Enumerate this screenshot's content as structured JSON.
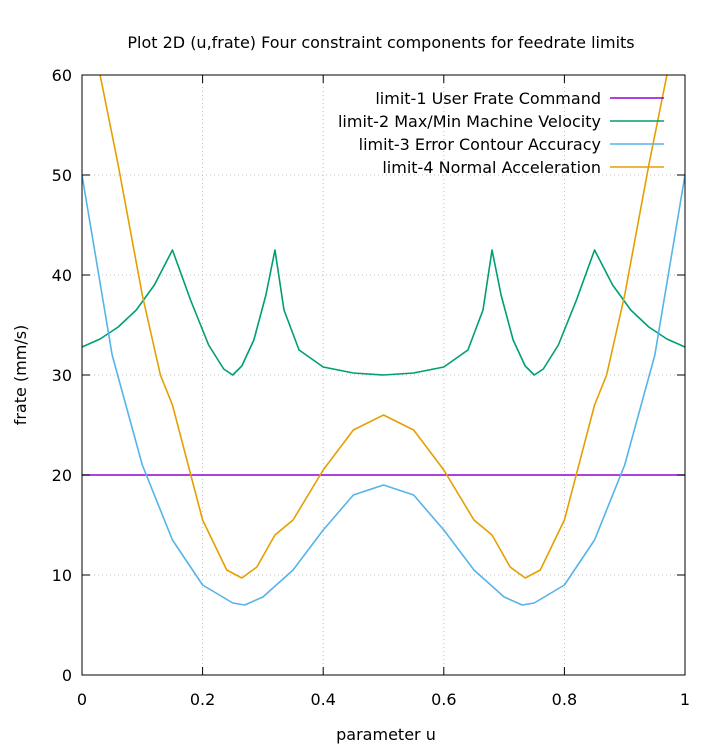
{
  "chart_data": {
    "type": "line",
    "title": "Plot 2D (u,frate) Four constraint components for feedrate limits",
    "xlabel": "parameter u",
    "ylabel": "frate (mm/s)",
    "xlim": [
      0,
      1
    ],
    "ylim": [
      0,
      60
    ],
    "x_ticks": [
      "0",
      "0.2",
      "0.4",
      "0.6",
      "0.8",
      "1"
    ],
    "y_ticks": [
      "0",
      "10",
      "20",
      "30",
      "40",
      "50",
      "60"
    ],
    "grid": true,
    "legend_position": "top-right",
    "series": [
      {
        "name": "limit-1 User Frate Command",
        "color": "#9400d3",
        "x": [
          0,
          1
        ],
        "y": [
          20,
          20
        ]
      },
      {
        "name": "limit-2 Max/Min Machine Velocity",
        "color": "#009e73",
        "x": [
          0,
          0.03,
          0.06,
          0.09,
          0.12,
          0.15,
          0.18,
          0.21,
          0.235,
          0.25,
          0.265,
          0.285,
          0.305,
          0.32,
          0.335,
          0.36,
          0.4,
          0.45,
          0.5,
          0.55,
          0.6,
          0.64,
          0.665,
          0.68,
          0.695,
          0.715,
          0.735,
          0.75,
          0.765,
          0.79,
          0.82,
          0.85,
          0.88,
          0.91,
          0.94,
          0.97,
          1
        ],
        "y": [
          32.8,
          33.6,
          34.8,
          36.5,
          39.0,
          42.5,
          37.5,
          33.0,
          30.6,
          30.0,
          30.9,
          33.5,
          38.0,
          42.5,
          36.5,
          32.5,
          30.8,
          30.2,
          30.0,
          30.2,
          30.8,
          32.5,
          36.5,
          42.5,
          38.0,
          33.5,
          30.9,
          30.0,
          30.6,
          33.0,
          37.5,
          42.5,
          39.0,
          36.5,
          34.8,
          33.6,
          32.8
        ]
      },
      {
        "name": "limit-3 Error Contour Accuracy",
        "color": "#56b4e9",
        "x": [
          0,
          0.05,
          0.1,
          0.15,
          0.2,
          0.25,
          0.27,
          0.3,
          0.35,
          0.4,
          0.45,
          0.5,
          0.55,
          0.6,
          0.65,
          0.7,
          0.73,
          0.75,
          0.8,
          0.85,
          0.9,
          0.95,
          1
        ],
        "y": [
          50,
          32,
          21,
          13.5,
          9,
          7.2,
          7,
          7.8,
          10.5,
          14.5,
          18,
          19,
          18,
          14.5,
          10.5,
          7.8,
          7,
          7.2,
          9,
          13.5,
          21,
          32,
          50
        ]
      },
      {
        "name": "limit-4 Normal Acceleration",
        "color": "#e69f00",
        "x": [
          0.03,
          0.06,
          0.1,
          0.13,
          0.15,
          0.2,
          0.24,
          0.265,
          0.29,
          0.32,
          0.35,
          0.4,
          0.45,
          0.5,
          0.55,
          0.6,
          0.65,
          0.68,
          0.71,
          0.735,
          0.76,
          0.8,
          0.85,
          0.87,
          0.9,
          0.94,
          0.97
        ],
        "y": [
          60,
          51,
          38,
          30,
          27,
          15.5,
          10.5,
          9.7,
          10.8,
          14,
          15.5,
          20.5,
          24.5,
          26,
          24.5,
          20.5,
          15.5,
          14,
          10.8,
          9.7,
          10.5,
          15.5,
          27,
          30,
          38,
          51,
          60
        ]
      }
    ]
  }
}
